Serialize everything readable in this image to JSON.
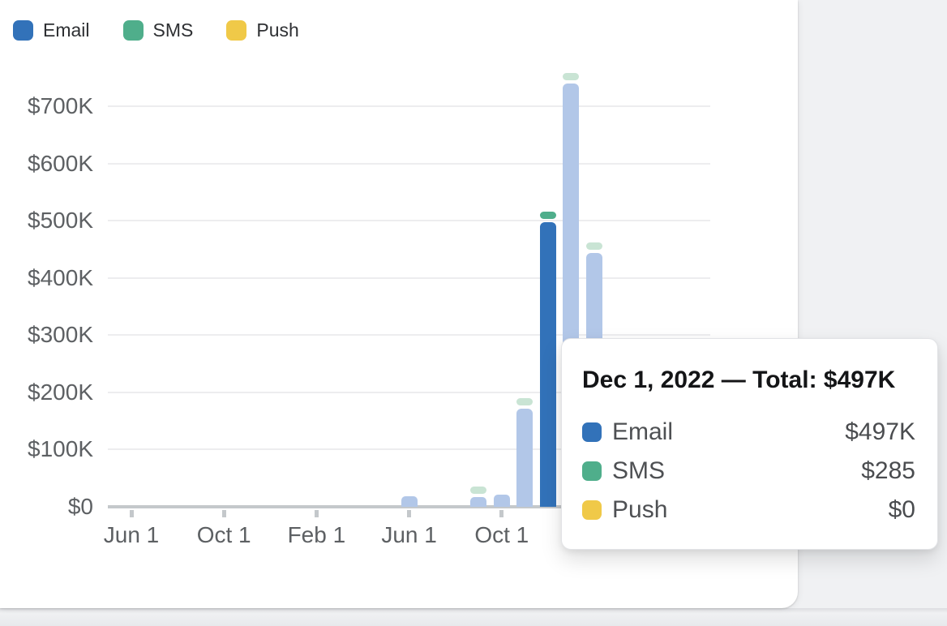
{
  "colors": {
    "email": "#3272b9",
    "sms": "#4fae8b",
    "push": "#f0c948",
    "email_light": "#b2c7e8",
    "sms_light": "#c9e4d4",
    "grid": "#ededef",
    "axis": "#c4c8cb",
    "card_background": "#ffffff",
    "page_background": "#f0f1f3"
  },
  "legend": {
    "items": [
      {
        "label": "Email",
        "color_key": "email"
      },
      {
        "label": "SMS",
        "color_key": "sms"
      },
      {
        "label": "Push",
        "color_key": "push"
      }
    ]
  },
  "tooltip": {
    "title": "Dec 1, 2022 — Total: $497K",
    "rows": [
      {
        "label": "Email",
        "value": "$497K",
        "color_key": "email"
      },
      {
        "label": "SMS",
        "value": "$285",
        "color_key": "sms"
      },
      {
        "label": "Push",
        "value": "$0",
        "color_key": "push"
      }
    ]
  },
  "chart_data": {
    "type": "bar",
    "stacked": true,
    "grid": true,
    "legend_position": "top-left",
    "ylim": [
      0,
      760000
    ],
    "series_names": [
      "Email",
      "SMS",
      "Push"
    ],
    "highlighted_month": "Dec 2022",
    "y_ticks": [
      {
        "label": "$0",
        "value": 0
      },
      {
        "label": "$100K",
        "value": 100000
      },
      {
        "label": "$200K",
        "value": 200000
      },
      {
        "label": "$300K",
        "value": 300000
      },
      {
        "label": "$400K",
        "value": 400000
      },
      {
        "label": "$500K",
        "value": 500000
      },
      {
        "label": "$600K",
        "value": 600000
      },
      {
        "label": "$700K",
        "value": 700000
      }
    ],
    "x_ticks": [
      {
        "label": "Jun 1",
        "month_index": 0
      },
      {
        "label": "Oct 1",
        "month_index": 4
      },
      {
        "label": "Feb 1",
        "month_index": 8
      },
      {
        "label": "Jun 1",
        "month_index": 12
      },
      {
        "label": "Oct 1",
        "month_index": 16
      }
    ],
    "months": [
      {
        "label": "Jun 2021",
        "email": 0,
        "sms": 0,
        "push": 0
      },
      {
        "label": "Jul 2021",
        "email": 0,
        "sms": 0,
        "push": 0
      },
      {
        "label": "Aug 2021",
        "email": 0,
        "sms": 0,
        "push": 0
      },
      {
        "label": "Sep 2021",
        "email": 0,
        "sms": 0,
        "push": 0
      },
      {
        "label": "Oct 2021",
        "email": 0,
        "sms": 0,
        "push": 0
      },
      {
        "label": "Nov 2021",
        "email": 0,
        "sms": 0,
        "push": 0
      },
      {
        "label": "Dec 2021",
        "email": 0,
        "sms": 0,
        "push": 0
      },
      {
        "label": "Jan 2022",
        "email": 0,
        "sms": 0,
        "push": 0
      },
      {
        "label": "Feb 2022",
        "email": 0,
        "sms": 0,
        "push": 0
      },
      {
        "label": "Mar 2022",
        "email": 0,
        "sms": 0,
        "push": 0
      },
      {
        "label": "Apr 2022",
        "email": 0,
        "sms": 0,
        "push": 0
      },
      {
        "label": "May 2022",
        "email": 0,
        "sms": 0,
        "push": 0
      },
      {
        "label": "Jun 2022",
        "email": 18000,
        "sms": 0,
        "push": 0
      },
      {
        "label": "Jul 2022",
        "email": 0,
        "sms": 0,
        "push": 0
      },
      {
        "label": "Aug 2022",
        "email": 0,
        "sms": 0,
        "push": 0
      },
      {
        "label": "Sep 2022",
        "email": 17000,
        "sms": 15000,
        "push": 0
      },
      {
        "label": "Oct 2022",
        "email": 21000,
        "sms": 0,
        "push": 0
      },
      {
        "label": "Nov 2022",
        "email": 172000,
        "sms": 13000,
        "push": 0
      },
      {
        "label": "Dec 2022",
        "email": 497000,
        "sms": 285,
        "push": 0
      },
      {
        "label": "Jan 2023",
        "email": 740000,
        "sms": 14000,
        "push": 0
      },
      {
        "label": "Feb 2023",
        "email": 443000,
        "sms": 14000,
        "push": 0
      }
    ]
  }
}
